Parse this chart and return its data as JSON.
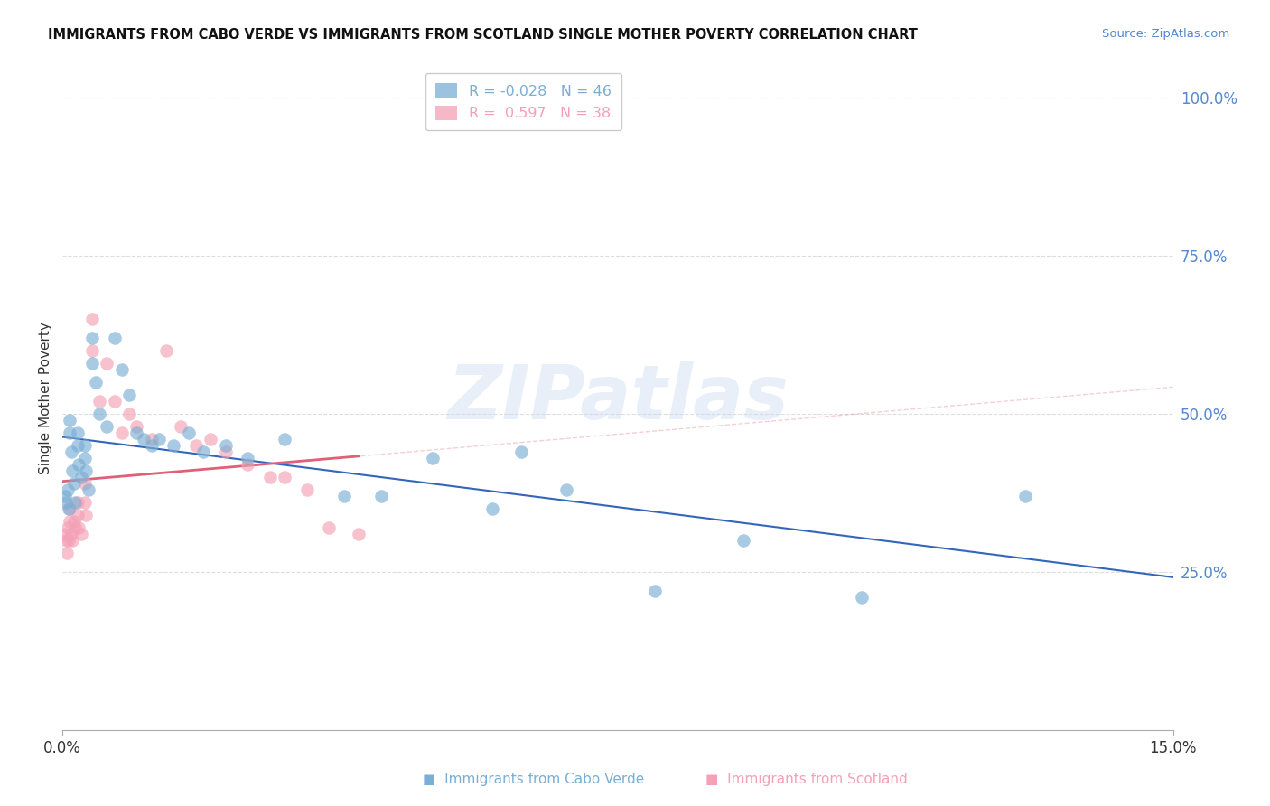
{
  "title": "IMMIGRANTS FROM CABO VERDE VS IMMIGRANTS FROM SCOTLAND SINGLE MOTHER POVERTY CORRELATION CHART",
  "source": "Source: ZipAtlas.com",
  "ylabel": "Single Mother Poverty",
  "xlim": [
    0.0,
    0.15
  ],
  "ylim": [
    0.0,
    1.05
  ],
  "ytick_right_vals": [
    0.0,
    0.25,
    0.5,
    0.75,
    1.0
  ],
  "ytick_right_labels": [
    "",
    "25.0%",
    "50.0%",
    "75.0%",
    "100.0%"
  ],
  "xtick_vals": [
    0.0,
    0.15
  ],
  "xtick_labels": [
    "0.0%",
    "15.0%"
  ],
  "watermark": "ZIPatlas",
  "cabo_verde_color": "#7aaed4",
  "scotland_color": "#f4a0b5",
  "trend_cabo_color": "#3366bb",
  "trend_scotland_color": "#e06078",
  "cabo_verde_R": -0.028,
  "cabo_verde_N": 46,
  "scotland_R": 0.597,
  "scotland_N": 38,
  "cabo_verde_x": [
    0.0003,
    0.0005,
    0.0007,
    0.0008,
    0.001,
    0.001,
    0.0012,
    0.0013,
    0.0015,
    0.0017,
    0.002,
    0.002,
    0.0022,
    0.0025,
    0.003,
    0.003,
    0.0032,
    0.0035,
    0.004,
    0.004,
    0.0045,
    0.005,
    0.006,
    0.007,
    0.008,
    0.009,
    0.01,
    0.011,
    0.012,
    0.013,
    0.015,
    0.017,
    0.019,
    0.022,
    0.025,
    0.03,
    0.038,
    0.043,
    0.05,
    0.058,
    0.062,
    0.068,
    0.08,
    0.092,
    0.108,
    0.13
  ],
  "cabo_verde_y": [
    0.37,
    0.36,
    0.38,
    0.35,
    0.49,
    0.47,
    0.44,
    0.41,
    0.39,
    0.36,
    0.47,
    0.45,
    0.42,
    0.4,
    0.45,
    0.43,
    0.41,
    0.38,
    0.62,
    0.58,
    0.55,
    0.5,
    0.48,
    0.62,
    0.57,
    0.53,
    0.47,
    0.46,
    0.45,
    0.46,
    0.45,
    0.47,
    0.44,
    0.45,
    0.43,
    0.46,
    0.37,
    0.37,
    0.43,
    0.35,
    0.44,
    0.38,
    0.22,
    0.3,
    0.21,
    0.37
  ],
  "scotland_x": [
    0.0003,
    0.0005,
    0.0006,
    0.0007,
    0.0008,
    0.001,
    0.001,
    0.0012,
    0.0013,
    0.0015,
    0.0017,
    0.002,
    0.002,
    0.0022,
    0.0025,
    0.003,
    0.003,
    0.0032,
    0.004,
    0.004,
    0.005,
    0.006,
    0.007,
    0.008,
    0.009,
    0.01,
    0.012,
    0.014,
    0.016,
    0.018,
    0.02,
    0.022,
    0.025,
    0.028,
    0.03,
    0.033,
    0.036,
    0.04
  ],
  "scotland_y": [
    0.31,
    0.3,
    0.28,
    0.32,
    0.3,
    0.35,
    0.33,
    0.31,
    0.3,
    0.33,
    0.32,
    0.36,
    0.34,
    0.32,
    0.31,
    0.39,
    0.36,
    0.34,
    0.65,
    0.6,
    0.52,
    0.58,
    0.52,
    0.47,
    0.5,
    0.48,
    0.46,
    0.6,
    0.48,
    0.45,
    0.46,
    0.44,
    0.42,
    0.4,
    0.4,
    0.38,
    0.32,
    0.31
  ]
}
